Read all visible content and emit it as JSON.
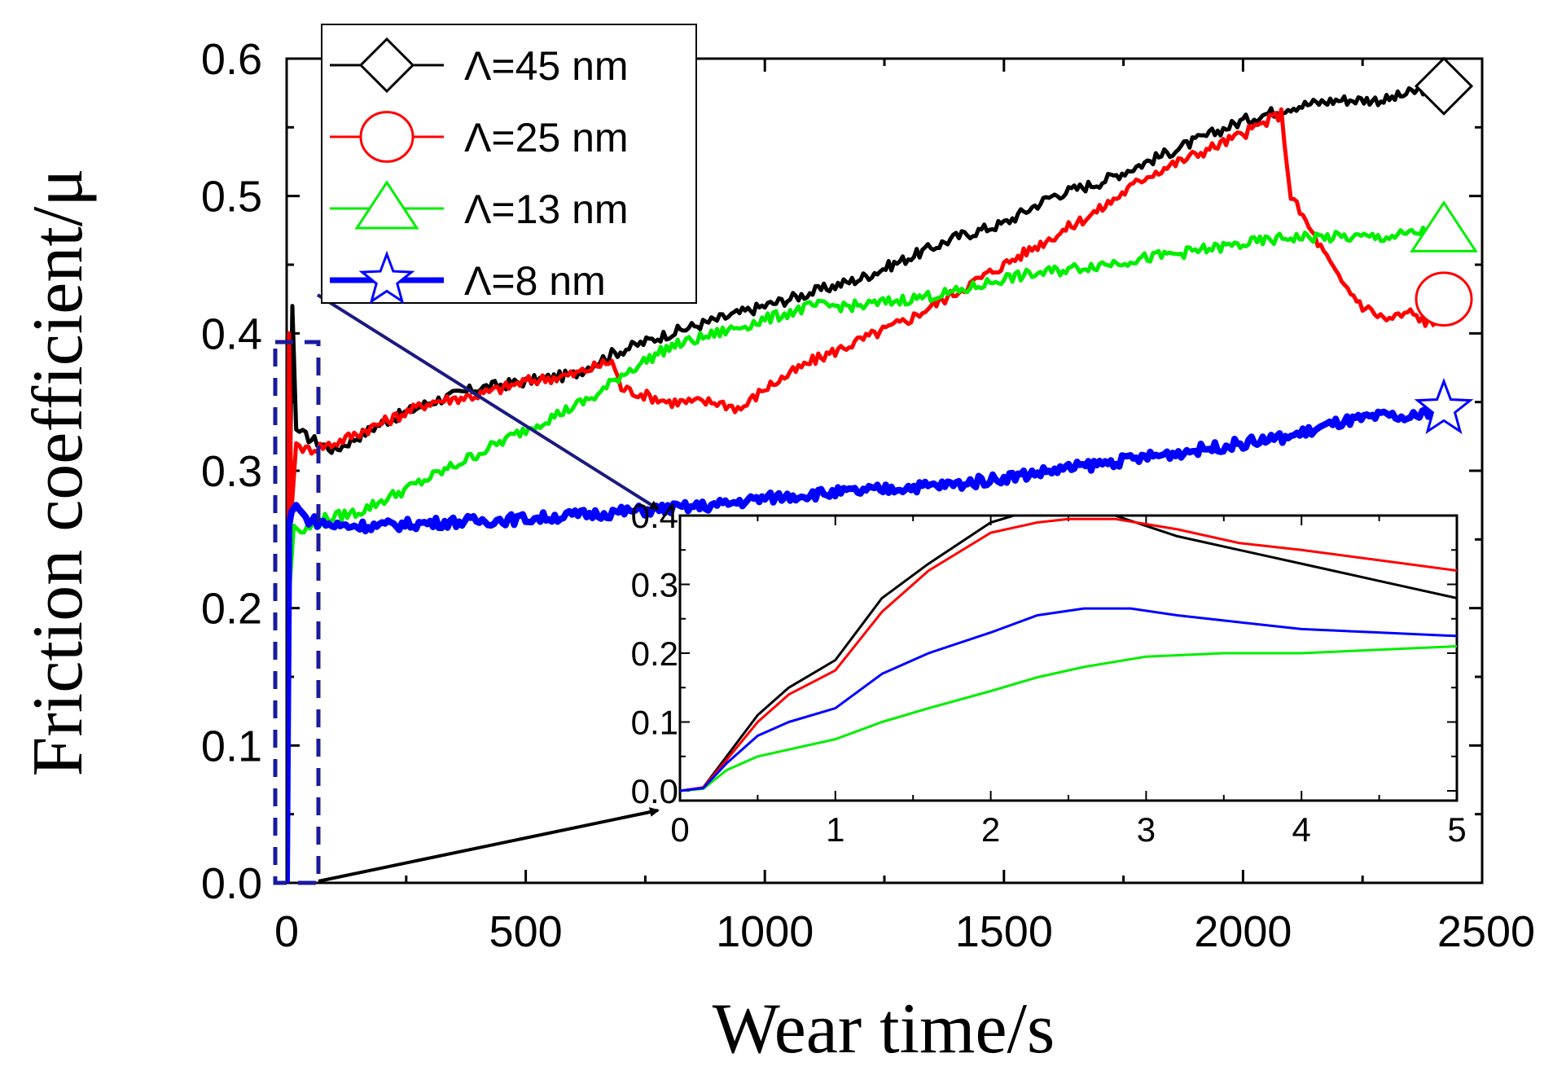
{
  "chart_data": {
    "type": "line",
    "xlabel": "Wear time/s",
    "ylabel": "Friction coefficient/μ",
    "xlim": [
      0,
      2500
    ],
    "ylim": [
      0.0,
      0.6
    ],
    "xticks": [
      "0",
      "500",
      "1000",
      "1500",
      "2000",
      "2500"
    ],
    "yticks": [
      "0.0",
      "0.1",
      "0.2",
      "0.3",
      "0.4",
      "0.5",
      "0.6"
    ],
    "legend_position": "top-left",
    "series": [
      {
        "name": "Λ=45 nm",
        "color": "#000000",
        "marker": "diamond",
        "x": [
          0,
          5,
          12,
          20,
          40,
          100,
          200,
          300,
          400,
          500,
          600,
          680,
          800,
          900,
          1000,
          1100,
          1200,
          1300,
          1400,
          1500,
          1600,
          1700,
          1800,
          1900,
          2000,
          2100,
          2200,
          2300,
          2400
        ],
        "y": [
          0.0,
          0.25,
          0.42,
          0.33,
          0.325,
          0.315,
          0.335,
          0.35,
          0.36,
          0.365,
          0.37,
          0.385,
          0.4,
          0.41,
          0.42,
          0.43,
          0.44,
          0.455,
          0.47,
          0.48,
          0.5,
          0.51,
          0.525,
          0.54,
          0.555,
          0.565,
          0.57,
          0.57,
          0.58
        ]
      },
      {
        "name": "Λ=25 nm",
        "color": "#ff0000",
        "marker": "circle",
        "x": [
          0,
          5,
          10,
          20,
          40,
          100,
          200,
          300,
          400,
          500,
          600,
          680,
          700,
          800,
          900,
          950,
          1000,
          1100,
          1200,
          1300,
          1400,
          1500,
          1600,
          1700,
          1800,
          1900,
          2000,
          2080,
          2100,
          2150,
          2200,
          2250,
          2300,
          2350,
          2400
        ],
        "y": [
          0.0,
          0.4,
          0.27,
          0.32,
          0.315,
          0.32,
          0.335,
          0.35,
          0.355,
          0.365,
          0.37,
          0.38,
          0.36,
          0.35,
          0.35,
          0.345,
          0.36,
          0.38,
          0.395,
          0.41,
          0.43,
          0.45,
          0.47,
          0.49,
          0.515,
          0.53,
          0.545,
          0.56,
          0.5,
          0.47,
          0.44,
          0.42,
          0.41,
          0.415,
          0.405
        ]
      },
      {
        "name": "Λ=13 nm",
        "color": "#00ee00",
        "marker": "triangle",
        "x": [
          0,
          5,
          15,
          30,
          80,
          150,
          300,
          500,
          650,
          700,
          800,
          900,
          1000,
          1100,
          1200,
          1300,
          1400,
          1500,
          1600,
          1700,
          1800,
          1900,
          2000,
          2100,
          2200,
          2300,
          2400
        ],
        "y": [
          0.0,
          0.21,
          0.26,
          0.255,
          0.265,
          0.27,
          0.295,
          0.33,
          0.355,
          0.37,
          0.39,
          0.4,
          0.41,
          0.42,
          0.42,
          0.425,
          0.43,
          0.44,
          0.445,
          0.45,
          0.455,
          0.46,
          0.465,
          0.47,
          0.47,
          0.47,
          0.475
        ]
      },
      {
        "name": "Λ=8 nm",
        "color": "#0000ff",
        "marker": "star",
        "x": [
          0,
          5,
          10,
          20,
          40,
          100,
          200,
          300,
          500,
          700,
          900,
          1000,
          1100,
          1200,
          1300,
          1400,
          1500,
          1600,
          1700,
          1800,
          1900,
          2000,
          2100,
          2150,
          2200,
          2300,
          2350,
          2400
        ],
        "y": [
          0.0,
          0.26,
          0.27,
          0.275,
          0.265,
          0.26,
          0.26,
          0.262,
          0.265,
          0.27,
          0.275,
          0.28,
          0.283,
          0.285,
          0.288,
          0.29,
          0.295,
          0.3,
          0.305,
          0.31,
          0.315,
          0.32,
          0.325,
          0.33,
          0.335,
          0.34,
          0.338,
          0.345
        ]
      }
    ],
    "inset": {
      "type": "line",
      "xlim": [
        0,
        5
      ],
      "ylim": [
        0.0,
        0.4
      ],
      "xticks": [
        "0",
        "1",
        "2",
        "3",
        "4",
        "5"
      ],
      "yticks": [
        "0.0",
        "0.1",
        "0.2",
        "0.3",
        "0.4"
      ],
      "series": [
        {
          "name": "Λ=45 nm",
          "color": "#000000",
          "x": [
            0,
            0.15,
            0.3,
            0.5,
            0.7,
            1.0,
            1.3,
            1.6,
            2.0,
            2.3,
            2.5,
            2.8,
            3.2,
            3.6,
            4.0,
            4.5,
            5.0
          ],
          "y": [
            0.0,
            0.005,
            0.05,
            0.11,
            0.15,
            0.19,
            0.28,
            0.33,
            0.39,
            0.41,
            0.41,
            0.4,
            0.37,
            0.35,
            0.33,
            0.305,
            0.28
          ]
        },
        {
          "name": "Λ=25 nm",
          "color": "#ff0000",
          "x": [
            0,
            0.15,
            0.3,
            0.5,
            0.7,
            1.0,
            1.3,
            1.6,
            2.0,
            2.3,
            2.5,
            2.8,
            3.2,
            3.6,
            4.0,
            4.5,
            5.0
          ],
          "y": [
            0.0,
            0.005,
            0.045,
            0.1,
            0.14,
            0.175,
            0.26,
            0.32,
            0.375,
            0.39,
            0.395,
            0.395,
            0.38,
            0.36,
            0.35,
            0.335,
            0.32
          ]
        },
        {
          "name": "Λ=13 nm",
          "color": "#00ee00",
          "x": [
            0,
            0.15,
            0.3,
            0.5,
            0.7,
            1.0,
            1.3,
            1.6,
            2.0,
            2.3,
            2.6,
            3.0,
            3.5,
            4.0,
            4.5,
            5.0
          ],
          "y": [
            0.0,
            0.003,
            0.03,
            0.05,
            0.06,
            0.075,
            0.1,
            0.12,
            0.145,
            0.165,
            0.18,
            0.195,
            0.2,
            0.2,
            0.205,
            0.21
          ]
        },
        {
          "name": "Λ=8 nm",
          "color": "#0000ff",
          "x": [
            0,
            0.15,
            0.3,
            0.5,
            0.7,
            1.0,
            1.3,
            1.6,
            2.0,
            2.3,
            2.6,
            2.9,
            3.2,
            3.6,
            4.0,
            4.5,
            5.0
          ],
          "y": [
            0.0,
            0.004,
            0.04,
            0.08,
            0.1,
            0.12,
            0.17,
            0.2,
            0.23,
            0.255,
            0.265,
            0.265,
            0.255,
            0.245,
            0.235,
            0.23,
            0.225
          ]
        }
      ]
    }
  }
}
